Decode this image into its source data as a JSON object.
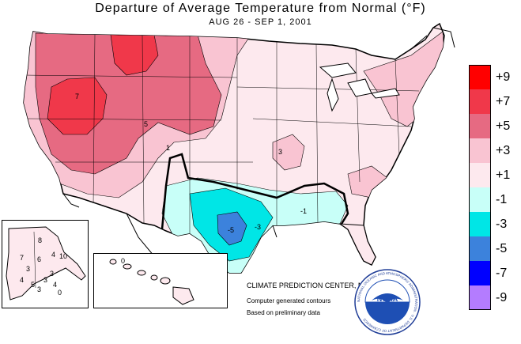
{
  "header": {
    "title": "Departure of Average Temperature from Normal (°F)",
    "subtitle": "AUG 26 - SEP  1, 2001"
  },
  "legend": {
    "items": [
      {
        "label": "+9",
        "color": "#ff0000"
      },
      {
        "label": "+7",
        "color": "#f0384a"
      },
      {
        "label": "+5",
        "color": "#e66a82"
      },
      {
        "label": "+3",
        "color": "#f9c4d2"
      },
      {
        "label": "+1",
        "color": "#fde9ee"
      },
      {
        "label": "-1",
        "color": "#c8fff8"
      },
      {
        "label": "-3",
        "color": "#00e6e6"
      },
      {
        "label": "-5",
        "color": "#3c82dc"
      },
      {
        "label": "-7",
        "color": "#0000ff"
      },
      {
        "label": "-9",
        "color": "#b47cff"
      }
    ]
  },
  "credits": {
    "center": "CLIMATE PREDICTION CENTER, NOAA",
    "method": "Computer generated contours",
    "basis": "Based on preliminary data"
  },
  "logo": {
    "text": "NOAA",
    "ring_text": "NATIONAL OCEANIC AND ATMOSPHERIC ADMINISTRATION · U.S. DEPARTMENT OF COMMERCE",
    "icon": "noaa-logo-icon"
  },
  "alaska": {
    "labels": [
      "8",
      "10",
      "7",
      "6",
      "4",
      "3",
      "3",
      "4",
      "3",
      "5",
      "4",
      "3",
      "0"
    ]
  },
  "hawaii": {
    "labels": [
      "0"
    ]
  },
  "map": {
    "contour_labels": [
      "5",
      "7",
      "3",
      "1",
      "-1",
      "-3",
      "-5"
    ]
  }
}
